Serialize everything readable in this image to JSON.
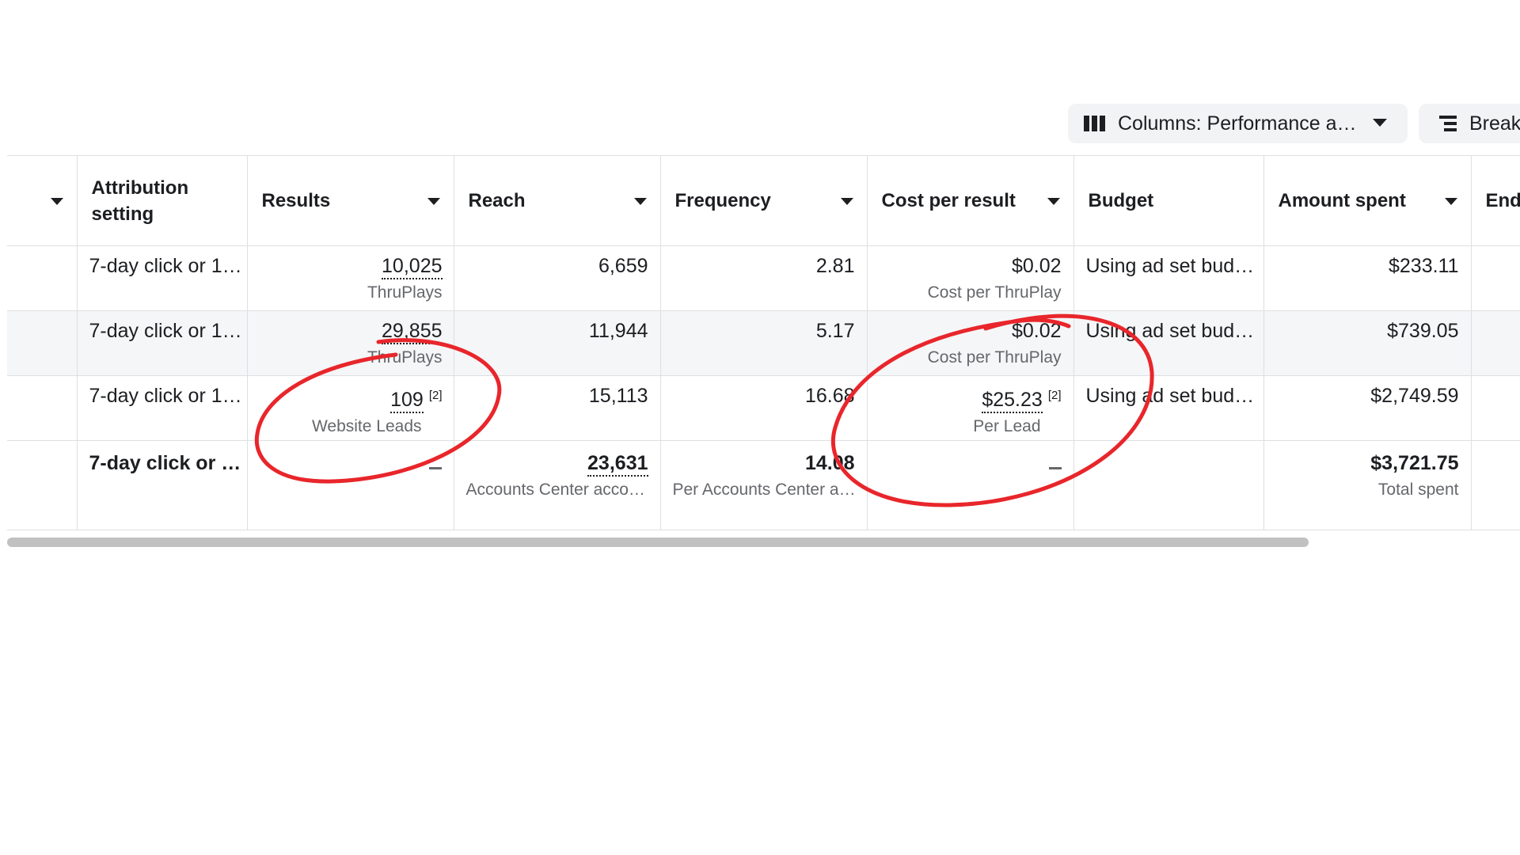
{
  "toolbar": {
    "columns_label": "Columns: Performance a…",
    "columns_icon": "columns-icon",
    "breakdown_label": "Breakdown",
    "breakdown_icon": "breakdown-icon"
  },
  "table": {
    "headers": {
      "attribution": "Attribution setting",
      "results": "Results",
      "reach": "Reach",
      "frequency": "Frequency",
      "cost_per_result": "Cost per result",
      "budget": "Budget",
      "amount_spent": "Amount spent",
      "ends": "Ends"
    },
    "rows": [
      {
        "attribution": "7-day click or 1…",
        "results": "10,025",
        "results_type": "ThruPlays",
        "reach": "6,659",
        "frequency": "2.81",
        "cost_per_result": "$0.02",
        "cost_type": "Cost per ThruPlay",
        "budget": "Using ad set bud…",
        "amount_spent": "$233.11"
      },
      {
        "attribution": "7-day click or 1…",
        "results": "29,855",
        "results_type": "ThruPlays",
        "reach": "11,944",
        "frequency": "5.17",
        "cost_per_result": "$0.02",
        "cost_type": "Cost per ThruPlay",
        "budget": "Using ad set bud…",
        "amount_spent": "$739.05"
      },
      {
        "attribution": "7-day click or 1…",
        "results": "109",
        "results_footnote": "[2]",
        "results_type": "Website Leads",
        "reach": "15,113",
        "frequency": "16.68",
        "cost_per_result": "$25.23",
        "cost_footnote": "[2]",
        "cost_type": "Per Lead",
        "budget": "Using ad set bud…",
        "amount_spent": "$2,749.59"
      }
    ],
    "summary": {
      "attribution": "7-day click or …",
      "reach": "23,631",
      "reach_sub": "Accounts Center acco…",
      "frequency": "14.08",
      "frequency_sub": "Per Accounts Center a…",
      "amount_spent": "$3,721.75",
      "amount_spent_sub": "Total spent"
    }
  },
  "annotations": {
    "color": "#e8262b",
    "circled": [
      "109 Website Leads",
      "$25.23 Per Lead"
    ]
  }
}
